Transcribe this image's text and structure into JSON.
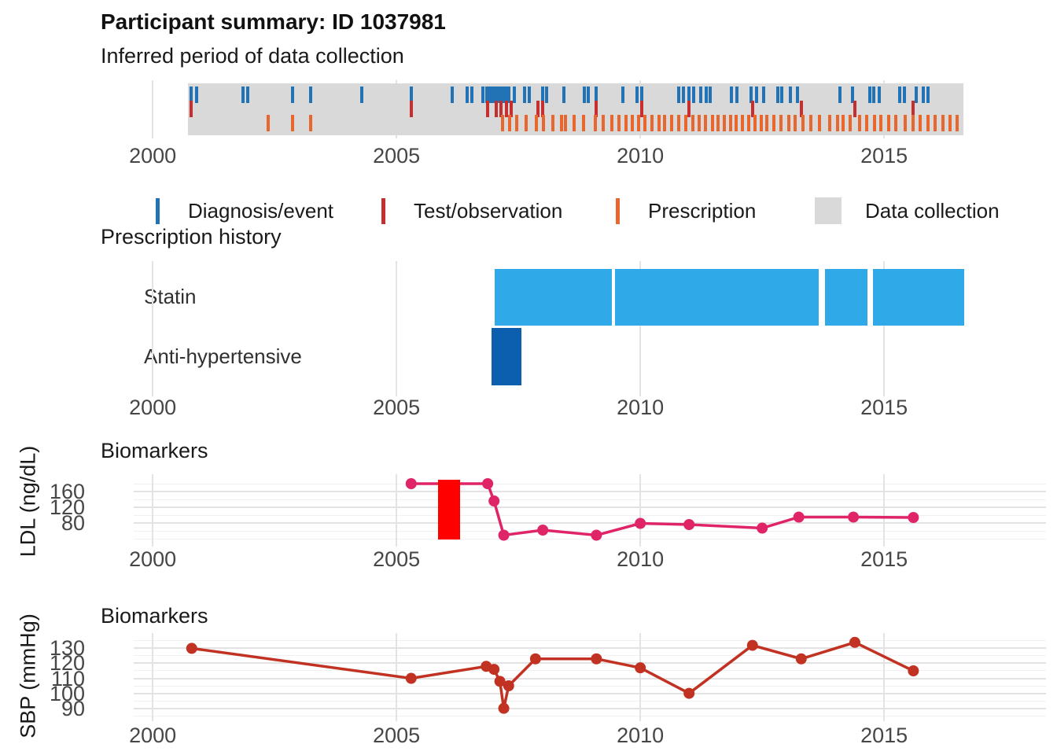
{
  "title": "Participant summary: ID 1037981",
  "colors": {
    "diagnosis": "#2273B5",
    "test": "#C62F2F",
    "prescription": "#E8672E",
    "collection_band": "#D9D9D9",
    "statin_bar": "#2FA9E8",
    "antihypertensive_bar": "#0C5FAE",
    "ldl_line": "#E02468",
    "ldl_highlight": "#FF0000",
    "sbp_line": "#C23222",
    "grid_major": "#E3E3E3",
    "grid_minor": "#F0F0F0",
    "axis_text": "#464646"
  },
  "x_axis": {
    "ticks": [
      "2000",
      "2005",
      "2010",
      "2015"
    ],
    "tick_years": [
      2000,
      2005,
      2010,
      2015
    ],
    "domain": [
      1999.61,
      2018.32
    ]
  },
  "legend": {
    "items": [
      {
        "label": "Diagnosis/event",
        "swatch": "line",
        "color_key": "diagnosis"
      },
      {
        "label": "Test/observation",
        "swatch": "line",
        "color_key": "test"
      },
      {
        "label": "Prescription",
        "swatch": "line",
        "color_key": "prescription"
      },
      {
        "label": "Data collection",
        "swatch": "box",
        "color_key": "collection_band"
      }
    ]
  },
  "chart_data": [
    {
      "id": "collection_timeline",
      "type": "event-timeline",
      "title": "Inferred period of data collection",
      "band_range": [
        2000.72,
        2016.62
      ],
      "series": [
        {
          "name": "Diagnosis/event",
          "row": "top",
          "color_key": "diagnosis",
          "events": [
            2000.78,
            2000.9,
            2001.85,
            2001.95,
            2002.87,
            2003.24,
            2004.28,
            2005.3,
            2006.14,
            2006.45,
            2006.55,
            2006.77,
            2006.85,
            2006.92,
            2006.98,
            2007.03,
            2007.08,
            2007.13,
            2007.18,
            2007.24,
            2007.3,
            2007.42,
            2007.63,
            2007.72,
            2008.0,
            2008.07,
            2008.44,
            2008.85,
            2008.93,
            2009.1,
            2009.65,
            2009.94,
            2010.03,
            2010.78,
            2010.89,
            2011.0,
            2011.1,
            2011.24,
            2011.35,
            2011.44,
            2011.87,
            2011.98,
            2012.27,
            2012.39,
            2012.53,
            2012.82,
            2012.9,
            2013.08,
            2013.23,
            2014.09,
            2014.35,
            2014.7,
            2014.78,
            2014.9,
            2015.32,
            2015.42,
            2015.66,
            2015.81,
            2015.9
          ]
        },
        {
          "name": "Test/observation",
          "row": "middle",
          "color_key": "test",
          "events": [
            2000.78,
            2005.3,
            2006.87,
            2007.05,
            2007.15,
            2007.25,
            2007.35,
            2007.9,
            2008.0,
            2009.1,
            2010.03,
            2011.0,
            2012.3,
            2013.3,
            2014.4,
            2015.6
          ]
        },
        {
          "name": "Prescription",
          "row": "bottom",
          "color_key": "prescription",
          "events": [
            2002.37,
            2002.87,
            2003.24,
            2007.17,
            2007.32,
            2007.46,
            2007.66,
            2007.87,
            2008.01,
            2008.21,
            2008.39,
            2008.47,
            2008.64,
            2008.84,
            2009.07,
            2009.24,
            2009.42,
            2009.56,
            2009.7,
            2009.84,
            2009.96,
            2010.1,
            2010.24,
            2010.38,
            2010.5,
            2010.64,
            2010.78,
            2010.94,
            2011.08,
            2011.2,
            2011.34,
            2011.48,
            2011.6,
            2011.72,
            2011.86,
            2011.96,
            2012.1,
            2012.22,
            2012.35,
            2012.48,
            2012.6,
            2012.74,
            2012.88,
            2013.04,
            2013.18,
            2013.34,
            2013.5,
            2013.68,
            2013.88,
            2014.04,
            2014.16,
            2014.3,
            2014.5,
            2014.64,
            2014.8,
            2014.94,
            2015.1,
            2015.24,
            2015.44,
            2015.6,
            2015.74,
            2015.9,
            2016.04,
            2016.2,
            2016.35,
            2016.5
          ]
        }
      ]
    },
    {
      "id": "prescription_history",
      "type": "gantt",
      "title": "Prescription history",
      "rows": [
        {
          "label": "Statin",
          "color_key": "statin_bar",
          "segments": [
            [
              2007.01,
              2009.42
            ],
            [
              2009.48,
              2013.66
            ],
            [
              2013.79,
              2014.66
            ],
            [
              2014.77,
              2016.64
            ]
          ]
        },
        {
          "label": "Anti-hypertensive",
          "color_key": "antihypertensive_bar",
          "segments": [
            [
              2006.95,
              2007.56
            ]
          ]
        }
      ]
    },
    {
      "id": "ldl",
      "type": "line",
      "title": "Biomarkers",
      "ylabel": "LDL (ng/dL)",
      "y_ticks": [
        160,
        120,
        80
      ],
      "y_minor_ticks": [
        180,
        140,
        100,
        60,
        40
      ],
      "y_domain": [
        26,
        198
      ],
      "color_key": "ldl_line",
      "highlight_span": {
        "x": [
          2005.85,
          2006.31
        ],
        "y": [
          38,
          190
        ],
        "color_key": "ldl_highlight"
      },
      "points": [
        [
          2005.3,
          180
        ],
        [
          2006.87,
          180
        ],
        [
          2007.0,
          136
        ],
        [
          2007.2,
          49
        ],
        [
          2008.0,
          62
        ],
        [
          2009.1,
          49
        ],
        [
          2010.0,
          79
        ],
        [
          2011.0,
          76
        ],
        [
          2012.5,
          67
        ],
        [
          2013.25,
          95
        ],
        [
          2014.37,
          95
        ],
        [
          2015.6,
          94
        ]
      ]
    },
    {
      "id": "sbp",
      "type": "line",
      "title": "Biomarkers",
      "ylabel": "SBP (mmHg)",
      "y_ticks": [
        130,
        120,
        110,
        100,
        90
      ],
      "y_minor_ticks": [
        135,
        125,
        115,
        105,
        95,
        85
      ],
      "y_domain": [
        83.0,
        138.6
      ],
      "color_key": "sbp_line",
      "points": [
        [
          2000.8,
          130
        ],
        [
          2005.3,
          110
        ],
        [
          2006.84,
          118
        ],
        [
          2007.0,
          116
        ],
        [
          2007.12,
          108
        ],
        [
          2007.2,
          90
        ],
        [
          2007.3,
          105
        ],
        [
          2007.85,
          123
        ],
        [
          2009.1,
          123
        ],
        [
          2010.0,
          117
        ],
        [
          2011.0,
          100
        ],
        [
          2012.3,
          132
        ],
        [
          2013.3,
          123
        ],
        [
          2014.4,
          134
        ],
        [
          2015.6,
          115
        ]
      ]
    }
  ]
}
